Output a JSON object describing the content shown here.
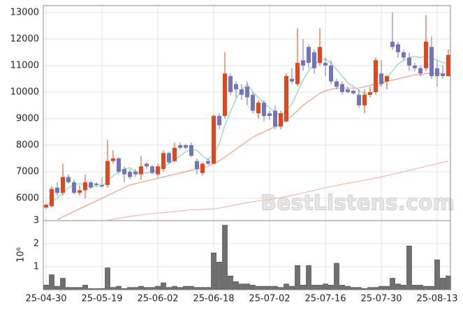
{
  "chart_data": [
    {
      "type": "candlestick",
      "watermark": "BestListens.com",
      "up_color": "#e2461a",
      "down_color": "#7373be",
      "grid": true,
      "ylim": [
        5155,
        13260
      ],
      "yticks": [
        6000,
        7000,
        8000,
        9000,
        10000,
        11000,
        12000,
        13000
      ],
      "open": [
        5650,
        5700,
        6400,
        6200,
        6800,
        6600,
        6200,
        6300,
        6600,
        6550,
        6500,
        6500,
        7400,
        7500,
        7100,
        7000,
        7000,
        6900,
        7300,
        7200,
        6900,
        7100,
        7700,
        7400,
        8000,
        8000,
        8000,
        7400,
        6950,
        7400,
        7300,
        9100,
        9100,
        10600,
        10300,
        10100,
        10200,
        9900,
        9200,
        9600,
        9200,
        9300,
        8700,
        8900,
        10500,
        10300,
        11200,
        11700,
        11500,
        11100,
        11100,
        11000,
        10400,
        10300,
        10100,
        10050,
        9900,
        9500,
        9900,
        10000,
        10700,
        10400,
        11900,
        11800,
        11500,
        11300,
        11000,
        10900,
        10900,
        11700,
        10900,
        10700,
        10600
      ],
      "high": [
        5800,
        6450,
        6600,
        7300,
        6900,
        6700,
        6500,
        6900,
        6650,
        6600,
        6800,
        8200,
        7800,
        7550,
        7200,
        7100,
        7100,
        7600,
        7350,
        7250,
        7300,
        7800,
        7750,
        8100,
        8100,
        8050,
        8100,
        7500,
        7350,
        7500,
        9150,
        9200,
        11500,
        10700,
        10400,
        10300,
        10400,
        10000,
        9700,
        9700,
        9300,
        9500,
        9300,
        10700,
        10900,
        12400,
        12000,
        11800,
        11600,
        12400,
        11300,
        11200,
        10500,
        10400,
        10200,
        10100,
        10100,
        10100,
        10200,
        11300,
        11200,
        10650,
        13000,
        11900,
        11600,
        11500,
        11100,
        11000,
        12900,
        12100,
        11200,
        11000,
        11600
      ],
      "low": [
        5600,
        5650,
        6100,
        6100,
        6550,
        6150,
        6100,
        6000,
        6350,
        6450,
        6400,
        6400,
        7300,
        6900,
        6600,
        6700,
        6800,
        6700,
        7100,
        6900,
        6800,
        7000,
        7300,
        7350,
        7850,
        7850,
        7550,
        6900,
        6850,
        7250,
        7300,
        8600,
        9000,
        9900,
        9800,
        9700,
        9500,
        9200,
        9000,
        8900,
        8950,
        8600,
        8600,
        8850,
        10300,
        10200,
        10800,
        10900,
        10700,
        11000,
        10600,
        10300,
        10100,
        9900,
        9950,
        9900,
        9400,
        9200,
        9800,
        9900,
        10200,
        10100,
        11600,
        11300,
        11200,
        10800,
        10800,
        10600,
        10800,
        10500,
        10200,
        10500,
        10600
      ],
      "close": [
        5750,
        6350,
        6200,
        6800,
        6600,
        6200,
        6300,
        6600,
        6400,
        6500,
        6450,
        7400,
        7500,
        7000,
        6900,
        6800,
        6900,
        7200,
        7200,
        6950,
        7200,
        7700,
        7350,
        7900,
        7900,
        7900,
        7600,
        7100,
        7300,
        7300,
        9100,
        8750,
        10700,
        10000,
        10100,
        9900,
        9800,
        9300,
        9600,
        9100,
        9100,
        8700,
        9200,
        10600,
        10400,
        11100,
        11000,
        11100,
        10900,
        11700,
        11000,
        10400,
        10200,
        10000,
        10000,
        9950,
        9500,
        9900,
        10000,
        11200,
        10300,
        10600,
        11700,
        11500,
        11300,
        11000,
        10900,
        10700,
        11900,
        10600,
        10600,
        10600,
        11400
      ],
      "lines": [
        {
          "color": "#7fd8b8",
          "values": [
            5700,
            5900,
            6000,
            6200,
            6400,
            6500,
            6550,
            6500,
            6450,
            6450,
            6450,
            6650,
            6850,
            7000,
            7100,
            7150,
            7000,
            6950,
            6950,
            7000,
            7050,
            7200,
            7300,
            7450,
            7600,
            7750,
            7850,
            7800,
            7600,
            7450,
            7650,
            8050,
            8750,
            9250,
            9750,
            10100,
            10300,
            10000,
            9800,
            9600,
            9400,
            9250,
            9100,
            9300,
            9550,
            10000,
            10450,
            10800,
            11050,
            11200,
            11250,
            11100,
            10850,
            10600,
            10350,
            10200,
            10050,
            9950,
            9900,
            10100,
            10300,
            10500,
            10800,
            11050,
            11200,
            11300,
            11350,
            11300,
            11350,
            11300,
            11200,
            11100,
            11100
          ]
        },
        {
          "color": "#ee9f80",
          "values": [
            null,
            null,
            5200,
            5300,
            5400,
            5500,
            5600,
            5700,
            5800,
            5900,
            6000,
            6100,
            6200,
            6300,
            6400,
            6500,
            6550,
            6600,
            6650,
            6700,
            6750,
            6800,
            6850,
            6900,
            6950,
            7000,
            7050,
            7100,
            7150,
            7200,
            7300,
            7400,
            7550,
            7700,
            7850,
            8000,
            8150,
            8300,
            8400,
            8500,
            8600,
            8700,
            8800,
            8950,
            9100,
            9300,
            9500,
            9650,
            9800,
            9950,
            10050,
            10100,
            10150,
            10150,
            10150,
            10150,
            10150,
            10200,
            10250,
            10300,
            10350,
            10400,
            10450,
            10500,
            10550,
            10600,
            10650,
            10650,
            10700,
            10700,
            10700,
            10700,
            10650
          ]
        },
        {
          "color": "#f0bca4",
          "values": [
            null,
            null,
            null,
            null,
            null,
            null,
            null,
            null,
            null,
            null,
            null,
            5170,
            5210,
            5250,
            5280,
            5310,
            5340,
            5370,
            5400,
            5420,
            5440,
            5460,
            5480,
            5500,
            5520,
            5540,
            5560,
            5570,
            5580,
            5590,
            5600,
            5630,
            5670,
            5710,
            5750,
            5790,
            5830,
            5870,
            5900,
            5930,
            5960,
            5990,
            6020,
            6060,
            6100,
            6150,
            6200,
            6250,
            6300,
            6350,
            6400,
            6440,
            6480,
            6520,
            6560,
            6600,
            6640,
            6680,
            6720,
            6760,
            6800,
            6850,
            6900,
            6950,
            7000,
            7050,
            7100,
            7150,
            7200,
            7250,
            7300,
            7350,
            7400
          ]
        }
      ]
    },
    {
      "type": "bar",
      "color": "#707070",
      "ylabel": "10⁶",
      "ylim": [
        0,
        3
      ],
      "yticks": [
        1,
        2,
        3
      ],
      "categories": [
        "25-04-30",
        null,
        null,
        null,
        null,
        null,
        null,
        null,
        null,
        null,
        "25-05-19",
        null,
        null,
        null,
        null,
        null,
        null,
        null,
        null,
        null,
        "25-06-02",
        null,
        null,
        null,
        null,
        null,
        null,
        null,
        null,
        null,
        "25-06-18",
        null,
        null,
        null,
        null,
        null,
        null,
        null,
        null,
        null,
        "25-07-02",
        null,
        null,
        null,
        null,
        null,
        null,
        null,
        null,
        null,
        "25-07-16",
        null,
        null,
        null,
        null,
        null,
        null,
        null,
        null,
        null,
        "25-07-30",
        null,
        null,
        null,
        null,
        null,
        null,
        null,
        null,
        null,
        "25-08-13",
        null,
        null
      ],
      "values": [
        0.2,
        0.65,
        0.15,
        0.5,
        0.1,
        0.1,
        0.1,
        0.2,
        0.05,
        0.05,
        0.05,
        0.95,
        0.1,
        0.15,
        0.05,
        0.1,
        0.1,
        0.15,
        0.1,
        0.1,
        0.15,
        0.3,
        0.1,
        0.15,
        0.1,
        0.15,
        0.15,
        0.1,
        0.1,
        0.1,
        1.6,
        1.2,
        2.8,
        0.6,
        0.35,
        0.25,
        0.25,
        0.2,
        0.15,
        0.15,
        0.15,
        0.15,
        0.1,
        0.25,
        0.15,
        1.05,
        0.2,
        1.05,
        0.2,
        0.2,
        0.25,
        0.2,
        1.15,
        0.2,
        0.15,
        0.1,
        0.1,
        0.05,
        0.1,
        0.1,
        0.15,
        0.15,
        0.5,
        0.25,
        0.2,
        1.9,
        0.2,
        0.2,
        0.15,
        0.15,
        1.3,
        0.5,
        0.6
      ]
    }
  ]
}
